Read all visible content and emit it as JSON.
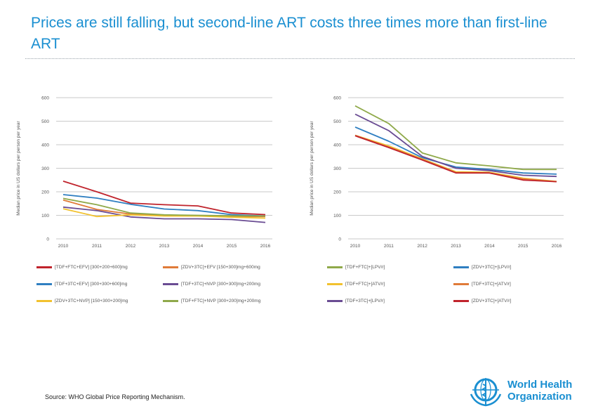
{
  "title": "Prices are still falling, but second-line ART costs three times more than first-line ART",
  "source": "Source: WHO Global Price Reporting Mechanism.",
  "logo": {
    "line1": "World Health",
    "line2": "Organization",
    "icon": "who-emblem-icon",
    "color": "#1a8fd1"
  },
  "chart_data": [
    {
      "type": "line",
      "ylabel": "Median price in US dollars per person per year",
      "ylim": [
        0,
        600
      ],
      "yticks": [
        0,
        100,
        200,
        300,
        400,
        500,
        600
      ],
      "categories": [
        "2010",
        "2011",
        "2012",
        "2013",
        "2014",
        "2015",
        "2016"
      ],
      "series": [
        {
          "name": "[TDF+FTC+EFV] [300+200+600]mg",
          "color": "#c0232c",
          "values": [
            245,
            200,
            152,
            145,
            140,
            110,
            103
          ]
        },
        {
          "name": "[ZDV+3TC]+EFV [150+300]mg+600mg",
          "color": "#e07b39",
          "values": [
            165,
            125,
            105,
            98,
            98,
            95,
            95
          ]
        },
        {
          "name": "[TDF+3TC+EFV] [300+300+600]mg",
          "color": "#2f7fc1",
          "values": [
            188,
            173,
            147,
            127,
            120,
            103,
            97
          ]
        },
        {
          "name": "[TDF+3TC]+NVP [300+300]mg+200mg",
          "color": "#6a4c93",
          "values": [
            135,
            120,
            93,
            85,
            85,
            82,
            70
          ]
        },
        {
          "name": "[ZDV+3TC+NVP] [150+300+200]mg",
          "color": "#f2c12e",
          "values": [
            128,
            95,
            102,
            97,
            97,
            92,
            88
          ]
        },
        {
          "name": "[TDF+FTC]+NVP [300+200]mg+200mg",
          "color": "#8fa94a",
          "values": [
            172,
            145,
            110,
            102,
            100,
            98,
            97
          ]
        }
      ]
    },
    {
      "type": "line",
      "ylabel": "Median price in US dollars per person per year",
      "ylim": [
        0,
        600
      ],
      "yticks": [
        0,
        100,
        200,
        300,
        400,
        500,
        600
      ],
      "categories": [
        "2010",
        "2011",
        "2012",
        "2013",
        "2014",
        "2015",
        "2016"
      ],
      "series": [
        {
          "name": "[TDF+FTC]+[LPV/r]",
          "color": "#8fa94a",
          "values": [
            565,
            490,
            365,
            323,
            310,
            295,
            295
          ]
        },
        {
          "name": "[ZDV+3TC]+[LPV/r]",
          "color": "#2f7fc1",
          "values": [
            475,
            415,
            345,
            305,
            295,
            280,
            275
          ]
        },
        {
          "name": "[TDF+FTC]+[ATV/r]",
          "color": "#f2c12e",
          "values": [
            440,
            395,
            340,
            285,
            283,
            258,
            244
          ]
        },
        {
          "name": "[TDF+3TC]+[ATV/r]",
          "color": "#e07b39",
          "values": [
            440,
            390,
            338,
            282,
            280,
            255,
            243
          ]
        },
        {
          "name": "[TDF+3TC]+[LPV/r]",
          "color": "#6a4c93",
          "values": [
            530,
            460,
            350,
            300,
            290,
            270,
            265
          ]
        },
        {
          "name": "[ZDV+3TC]+[ATV/r]",
          "color": "#c0232c",
          "values": [
            438,
            388,
            335,
            280,
            280,
            250,
            243
          ]
        }
      ]
    }
  ]
}
